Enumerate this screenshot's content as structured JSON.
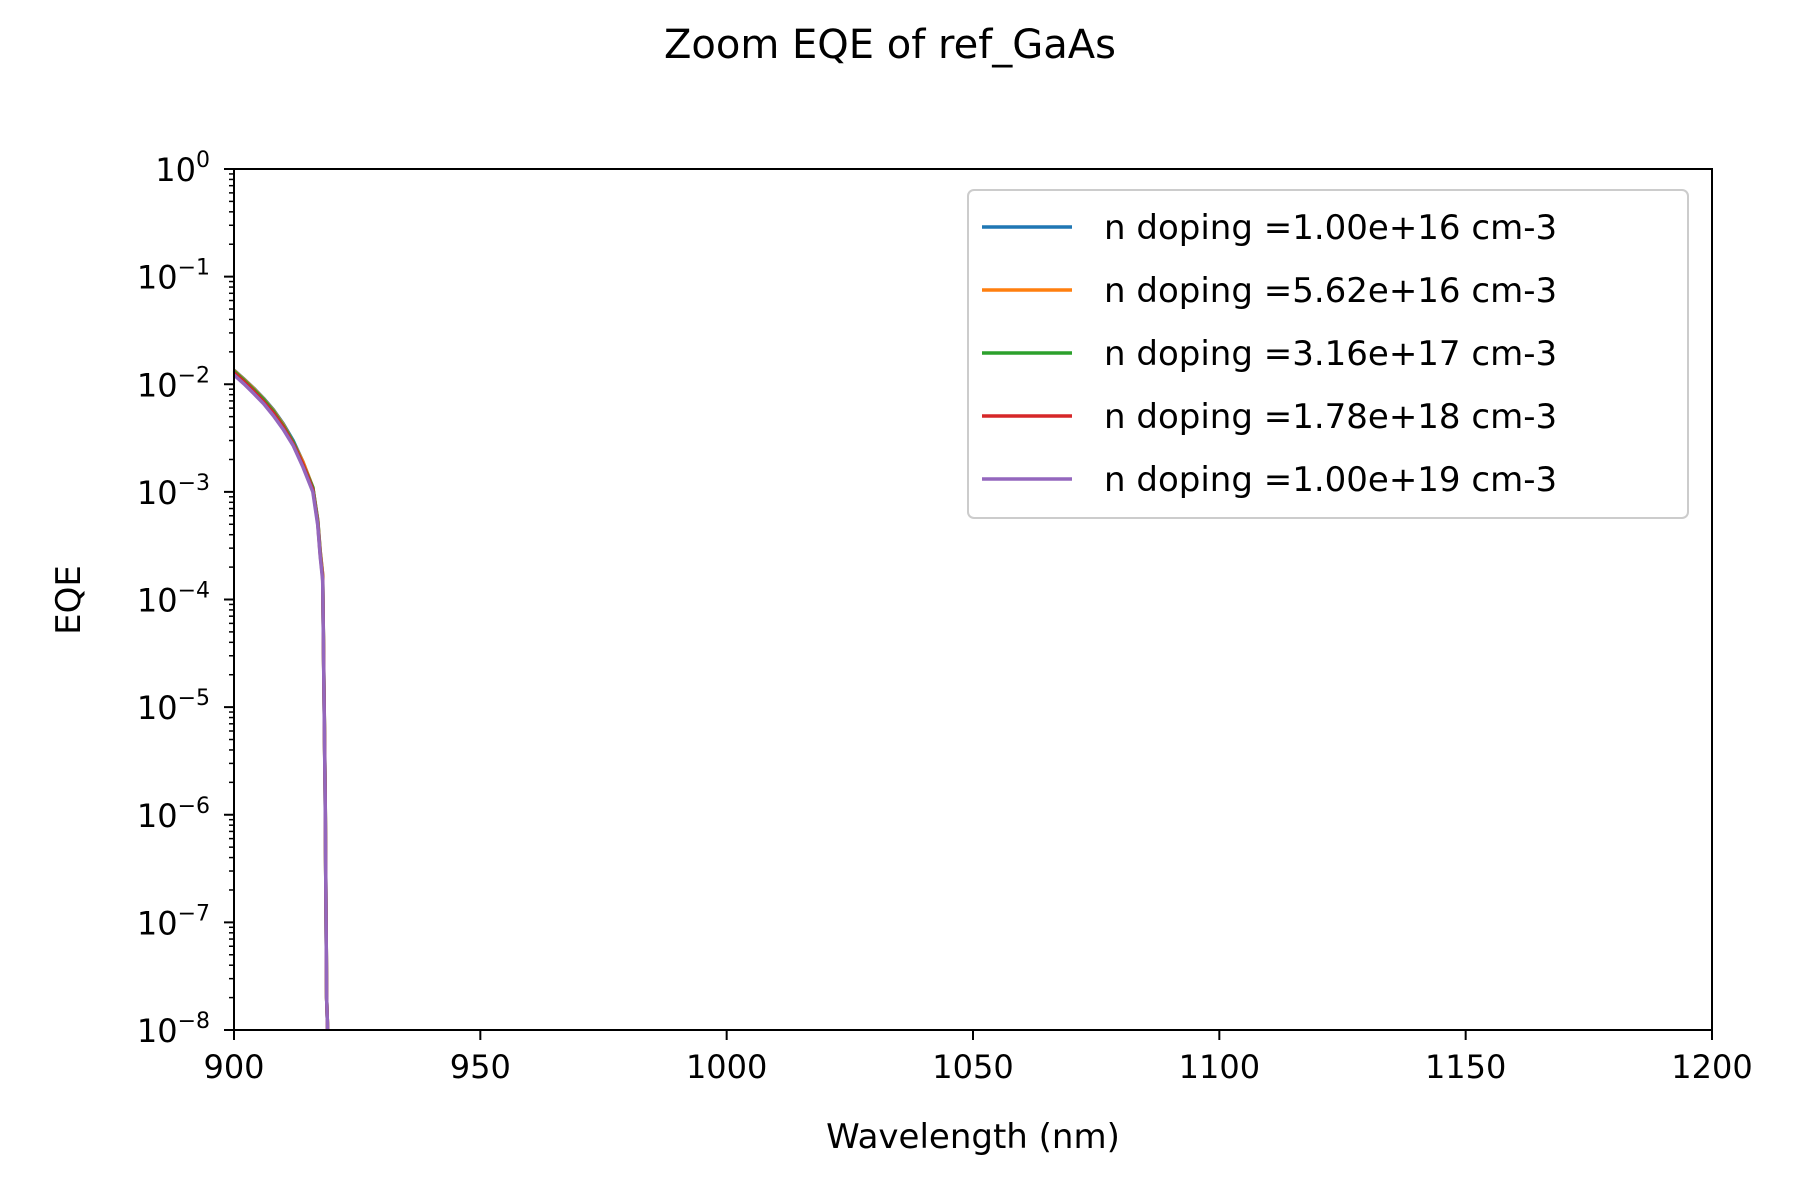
{
  "chart_data": {
    "type": "line",
    "title": "Zoom EQE of ref_GaAs",
    "xlabel": "Wavelength (nm)",
    "ylabel": "EQE",
    "xlim": [
      900,
      1200
    ],
    "ylim": [
      1e-08,
      1
    ],
    "yscale": "log",
    "grid": false,
    "legend_position": "top-right",
    "xticks": [
      900,
      950,
      1000,
      1050,
      1100,
      1150,
      1200
    ],
    "xtick_labels": [
      "900",
      "950",
      "1000",
      "1050",
      "1100",
      "1150",
      "1200"
    ],
    "yticks": [
      {
        "base": "10",
        "exp": "−8",
        "value": 1e-08
      },
      {
        "base": "10",
        "exp": "−7",
        "value": 1e-07
      },
      {
        "base": "10",
        "exp": "−6",
        "value": 1e-06
      },
      {
        "base": "10",
        "exp": "−5",
        "value": 1e-05
      },
      {
        "base": "10",
        "exp": "−4",
        "value": 0.0001
      },
      {
        "base": "10",
        "exp": "−3",
        "value": 0.001
      },
      {
        "base": "10",
        "exp": "−2",
        "value": 0.01
      },
      {
        "base": "10",
        "exp": "−1",
        "value": 0.1
      },
      {
        "base": "10",
        "exp": "0",
        "value": 1
      }
    ],
    "x": [
      900,
      902,
      904,
      906,
      908,
      910,
      912,
      914,
      916,
      917,
      917.5,
      918,
      918.5,
      918.8,
      919
    ],
    "series": [
      {
        "name": "n doping =1.00e+16 cm-3",
        "color": "#1f77b4",
        "values": [
          0.0135,
          0.0112,
          0.0092,
          0.0074,
          0.0058,
          0.0043,
          0.003,
          0.0019,
          0.0011,
          0.00055,
          0.00028,
          0.00017,
          1.7e-06,
          2e-08,
          1e-08
        ]
      },
      {
        "name": "n doping =5.62e+16 cm-3",
        "color": "#ff7f0e",
        "values": [
          0.0134,
          0.0111,
          0.0091,
          0.0073,
          0.0057,
          0.0042,
          0.0029,
          0.0019,
          0.0011,
          0.00054,
          0.00028,
          0.00017,
          1.7e-06,
          2e-08,
          1e-08
        ]
      },
      {
        "name": "n doping =3.16e+17 cm-3",
        "color": "#2ca02c",
        "values": [
          0.0132,
          0.0109,
          0.0089,
          0.0072,
          0.0056,
          0.0041,
          0.0029,
          0.0018,
          0.0011,
          0.00053,
          0.00027,
          0.00016,
          1.6e-06,
          2e-08,
          1e-08
        ]
      },
      {
        "name": "n doping =1.78e+18 cm-3",
        "color": "#d62728",
        "values": [
          0.0128,
          0.0106,
          0.0086,
          0.0069,
          0.0054,
          0.004,
          0.0028,
          0.0018,
          0.00105,
          0.00051,
          0.00026,
          0.00016,
          1.6e-06,
          2e-08,
          1e-08
        ]
      },
      {
        "name": "n doping =1.00e+19 cm-3",
        "color": "#9467bd",
        "values": [
          0.0122,
          0.0101,
          0.0082,
          0.0066,
          0.0051,
          0.0038,
          0.0027,
          0.0017,
          0.001,
          0.00049,
          0.00025,
          0.00015,
          1.5e-06,
          2e-08,
          1e-08
        ]
      }
    ]
  }
}
